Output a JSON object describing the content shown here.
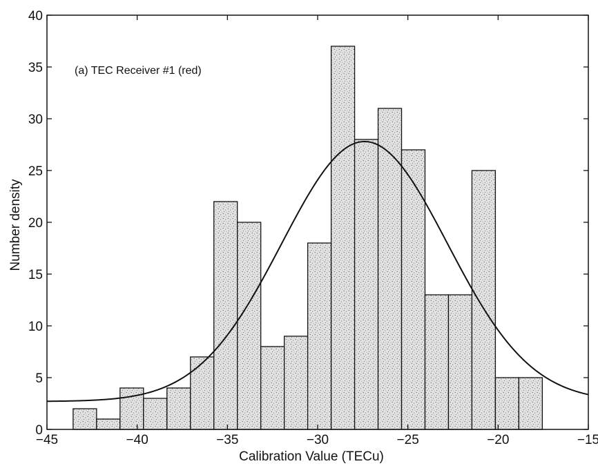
{
  "chart_data": {
    "type": "bar",
    "title": "",
    "annotation": "(a) TEC Receiver #1 (red)",
    "xlabel": "Calibration Value (TECu)",
    "ylabel": "Number density",
    "xlim": [
      -45,
      -15
    ],
    "ylim": [
      0,
      40
    ],
    "xticks": [
      -45,
      -40,
      -35,
      -30,
      -25,
      -20,
      -15
    ],
    "yticks": [
      0,
      5,
      10,
      15,
      20,
      25,
      30,
      35,
      40
    ],
    "bin_width": 1.3,
    "series": [
      {
        "type": "histogram",
        "bin_centers": [
          -42.9,
          -41.6,
          -40.3,
          -39.0,
          -37.7,
          -36.4,
          -35.1,
          -33.8,
          -32.5,
          -31.2,
          -29.9,
          -28.6,
          -27.3,
          -26.0,
          -24.7,
          -23.4,
          -22.1,
          -20.8,
          -19.5,
          -18.2
        ],
        "values": [
          2,
          1,
          4,
          3,
          4,
          7,
          22,
          20,
          8,
          9,
          18,
          37,
          28,
          31,
          27,
          13,
          13,
          25,
          5,
          5
        ]
      },
      {
        "type": "line",
        "description_free": true,
        "fit": {
          "baseline": 2.7,
          "amplitude": 25.1,
          "center": -27.4,
          "sigma": 4.6
        }
      }
    ],
    "grid": false,
    "legend": "none",
    "colors": {
      "bar_fill": "#d8d8d8",
      "bar_edge": "#111111",
      "line": "#111111",
      "stipple": "#555555"
    }
  }
}
